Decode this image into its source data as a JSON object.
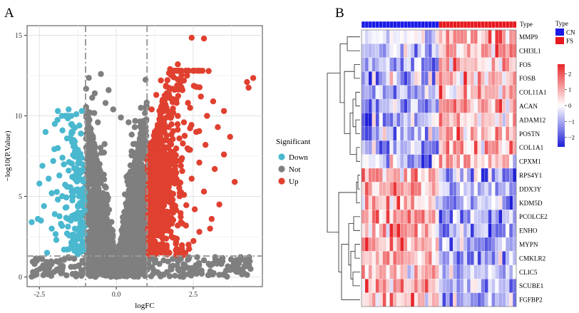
{
  "panels": {
    "a_label": "A",
    "b_label": "B"
  },
  "chart_data": [
    {
      "type": "scatter",
      "subtype": "volcano",
      "xlabel": "logFC",
      "ylabel": "−log10(P.Value)",
      "xlim": [
        -2.9,
        4.75
      ],
      "ylim": [
        -0.6,
        15.6
      ],
      "x_ticks": [
        -2.5,
        0,
        2.5
      ],
      "x_tick_labels": [
        "-2.5",
        "0.0",
        "2.5"
      ],
      "y_ticks": [
        0,
        5,
        10,
        15
      ],
      "y_tick_labels": [
        "0",
        "5",
        "10",
        "15"
      ],
      "grid": true,
      "logfc_thresholds": [
        -1,
        1
      ],
      "p_threshold": 1.3,
      "legend": {
        "title": "Significant",
        "position": "right",
        "entries": [
          {
            "key": "Down",
            "label": "Down",
            "color": "#4ab8cf"
          },
          {
            "key": "Not",
            "label": "Not",
            "color": "#7f7f7f"
          },
          {
            "key": "Up",
            "label": "Up",
            "color": "#e0402f"
          }
        ]
      },
      "down_points": [
        [
          -1.9,
          10.3
        ],
        [
          -1.55,
          10.4
        ],
        [
          -1.65,
          10.0
        ],
        [
          -1.3,
          10.1
        ],
        [
          -1.12,
          10.3
        ],
        [
          -2.0,
          9.5
        ],
        [
          -1.75,
          9.1
        ],
        [
          -2.3,
          9.0
        ],
        [
          -1.45,
          9.0
        ],
        [
          -1.2,
          9.4
        ],
        [
          -1.6,
          8.6
        ],
        [
          -1.9,
          8.0
        ],
        [
          -1.35,
          8.4
        ],
        [
          -1.15,
          8.9
        ],
        [
          -2.05,
          7.2
        ],
        [
          -2.4,
          6.9
        ],
        [
          -1.75,
          7.4
        ],
        [
          -1.3,
          7.6
        ],
        [
          -1.1,
          7.0
        ],
        [
          -1.55,
          6.6
        ],
        [
          -2.2,
          6.1
        ],
        [
          -1.85,
          6.3
        ],
        [
          -1.25,
          6.0
        ],
        [
          -2.5,
          5.8
        ],
        [
          -1.6,
          5.6
        ],
        [
          -1.15,
          5.4
        ],
        [
          -2.1,
          5.2
        ],
        [
          -1.4,
          5.0
        ],
        [
          -1.9,
          4.8
        ],
        [
          -1.05,
          4.5
        ],
        [
          -2.35,
          4.4
        ],
        [
          -1.65,
          4.3
        ],
        [
          -1.25,
          4.0
        ],
        [
          -2.0,
          3.9
        ],
        [
          -1.5,
          3.6
        ],
        [
          -2.45,
          3.5
        ],
        [
          -1.1,
          3.4
        ],
        [
          -2.75,
          3.4
        ],
        [
          -2.55,
          3.6
        ],
        [
          -1.8,
          3.3
        ],
        [
          -1.35,
          3.0
        ],
        [
          -2.1,
          3.0
        ],
        [
          -1.6,
          2.7
        ],
        [
          -1.15,
          2.5
        ],
        [
          -1.95,
          2.3
        ],
        [
          -1.4,
          2.1
        ],
        [
          -1.05,
          1.9
        ],
        [
          -2.25,
          1.5
        ],
        [
          -1.7,
          1.7
        ],
        [
          -1.25,
          1.4
        ]
      ],
      "up_points": [
        [
          2.45,
          14.85
        ],
        [
          2.85,
          14.8
        ],
        [
          4.45,
          12.35
        ],
        [
          4.25,
          12.1
        ],
        [
          4.3,
          11.75
        ],
        [
          2.0,
          13.2
        ],
        [
          1.75,
          12.9
        ],
        [
          2.3,
          12.5
        ],
        [
          1.45,
          12.2
        ],
        [
          2.6,
          11.8
        ],
        [
          2.15,
          11.6
        ],
        [
          1.3,
          11.3
        ],
        [
          2.75,
          11.2
        ],
        [
          1.95,
          11.0
        ],
        [
          3.15,
          10.9
        ],
        [
          1.6,
          10.7
        ],
        [
          2.4,
          10.5
        ],
        [
          3.5,
          10.3
        ],
        [
          1.15,
          10.4
        ],
        [
          1.85,
          10.2
        ],
        [
          2.95,
          10.0
        ],
        [
          1.4,
          9.8
        ],
        [
          2.2,
          9.6
        ],
        [
          3.3,
          9.3
        ],
        [
          1.7,
          9.3
        ],
        [
          2.6,
          9.0
        ],
        [
          1.25,
          9.0
        ],
        [
          3.7,
          8.7
        ],
        [
          2.05,
          8.6
        ],
        [
          1.5,
          8.4
        ],
        [
          2.9,
          8.2
        ],
        [
          1.1,
          8.1
        ],
        [
          2.35,
          7.9
        ],
        [
          3.5,
          7.6
        ],
        [
          1.8,
          7.6
        ],
        [
          1.35,
          7.3
        ],
        [
          2.7,
          7.1
        ],
        [
          2.1,
          6.9
        ],
        [
          3.2,
          6.7
        ],
        [
          1.55,
          6.6
        ],
        [
          1.15,
          6.3
        ],
        [
          2.45,
          6.1
        ],
        [
          3.85,
          5.9
        ],
        [
          1.9,
          5.8
        ],
        [
          1.35,
          5.6
        ],
        [
          2.85,
          5.3
        ],
        [
          2.2,
          5.1
        ],
        [
          1.6,
          4.9
        ],
        [
          1.1,
          4.6
        ],
        [
          3.35,
          4.5
        ],
        [
          2.55,
          4.2
        ],
        [
          1.85,
          4.0
        ],
        [
          1.3,
          3.8
        ],
        [
          3.1,
          3.6
        ],
        [
          2.1,
          3.4
        ],
        [
          1.55,
          3.1
        ],
        [
          1.05,
          2.9
        ],
        [
          2.7,
          2.8
        ],
        [
          1.8,
          2.5
        ],
        [
          1.25,
          2.2
        ],
        [
          2.35,
          2.0
        ],
        [
          1.5,
          1.7
        ],
        [
          1.05,
          1.5
        ],
        [
          1.95,
          1.4
        ],
        [
          3.05,
          3.0
        ]
      ],
      "not_points": [
        [
          -0.5,
          12.6
        ],
        [
          -0.25,
          11.6
        ],
        [
          -0.7,
          11.4
        ],
        [
          -0.35,
          10.8
        ],
        [
          -0.85,
          10.2
        ],
        [
          -0.1,
          10.4
        ],
        [
          0.15,
          9.9
        ],
        [
          0.4,
          9.6
        ],
        [
          -0.6,
          9.6
        ],
        [
          0.6,
          9.3
        ],
        [
          0.8,
          10.5
        ],
        [
          0.9,
          9.0
        ]
      ]
    },
    {
      "type": "heatmap",
      "annotation_label": "Type",
      "groups": [
        {
          "name": "CN",
          "color": "#1a1ae6",
          "count": 22
        },
        {
          "name": "FS",
          "color": "#e6191f",
          "count": 22
        }
      ],
      "rows": [
        "MMP9",
        "CHI3L1",
        "FOS",
        "FOSB",
        "COL11A1",
        "ACAN",
        "ADAM12",
        "POSTN",
        "COL1A1",
        "CPXM1",
        "RPS4Y1",
        "DDX3Y",
        "KDM5D",
        "PCOLCE2",
        "ENHO",
        "MYPN",
        "CMKLR2",
        "CLIC5",
        "SCUBE1",
        "FGFBP2"
      ],
      "row_direction": [
        1,
        1,
        1,
        1,
        1,
        1,
        1,
        1,
        1,
        1,
        -1,
        -1,
        -1,
        -1,
        -1,
        -1,
        -1,
        -1,
        -1,
        -1
      ],
      "colorbar": {
        "ticks": [
          2,
          1,
          0,
          -1,
          -2
        ],
        "tick_labels": [
          "2",
          "1",
          "0",
          "−1",
          "−2"
        ],
        "range": [
          -2.6,
          2.6
        ],
        "colors": [
          "#1f1fd8",
          "#ffffff",
          "#e8262a"
        ]
      },
      "legend": {
        "title": "Type",
        "position": "top-right",
        "entries": [
          "CN",
          "FS"
        ]
      }
    }
  ]
}
